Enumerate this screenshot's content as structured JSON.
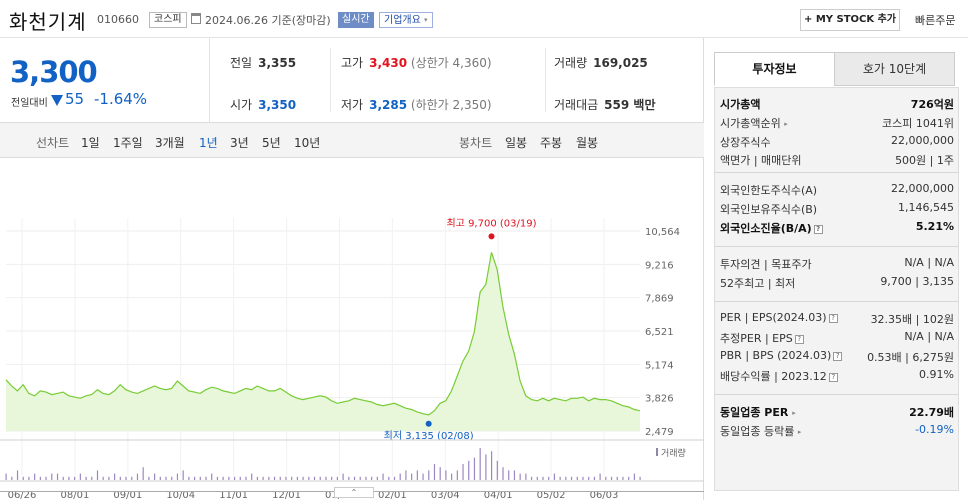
{
  "header": {
    "name": "화천기계",
    "code": "010660",
    "market": "코스피",
    "date_text": "2024.06.26  기준(장마감)",
    "realtime": "실시간",
    "corp_info": "기업개요",
    "corp_info_caret": "▾",
    "mystock": "+ MY STOCK 추가",
    "quick_order": "빠른주문"
  },
  "price": {
    "current": "3,300",
    "change_label": "전일대비",
    "change_amount": "55",
    "change_pct": "-1.64%"
  },
  "summary": {
    "prev_label": "전일",
    "prev": "3,355",
    "high_label": "고가",
    "high": "3,430",
    "upper_limit": "(상한가 4,360)",
    "volume_label": "거래량",
    "volume": "169,025",
    "open_label": "시가",
    "open": "3,350",
    "low_label": "저가",
    "low": "3,285",
    "lower_limit": "(하한가 2,350)",
    "amount_label": "거래대금",
    "amount": "559 백만"
  },
  "periods": {
    "line_label": "선차트",
    "line_items": [
      "1일",
      "1주일",
      "3개월",
      "1년",
      "3년",
      "5년",
      "10년"
    ],
    "active": "1년",
    "candle_label": "봉차트",
    "candle_items": [
      "일봉",
      "주봉",
      "월봉"
    ]
  },
  "chart_data": {
    "type": "area",
    "x_ticks": [
      "06/26",
      "08/01",
      "09/01",
      "10/04",
      "11/01",
      "12/01",
      "01/02",
      "02/01",
      "03/04",
      "04/01",
      "05/02",
      "06/03"
    ],
    "y_ticks": [
      "10,564",
      "9,216",
      "7,869",
      "6,521",
      "5,174",
      "3,826",
      "2,479"
    ],
    "ylim": [
      2479,
      10564
    ],
    "high_label": "최고 9,700 (03/19)",
    "low_label": "최저 3,135 (02/08)",
    "high": 9700,
    "low": 3135,
    "volume_label": "거래량",
    "prices": [
      4550,
      4300,
      4100,
      4350,
      4000,
      3900,
      4100,
      4050,
      3950,
      4000,
      4050,
      3900,
      3850,
      3800,
      3900,
      3950,
      4150,
      4000,
      3950,
      4100,
      4350,
      4150,
      4050,
      4000,
      4100,
      4200,
      4300,
      4200,
      4150,
      4200,
      4500,
      4300,
      4100,
      4050,
      4000,
      4150,
      4250,
      4200,
      4100,
      4050,
      4000,
      4100,
      4200,
      4150,
      4300,
      4200,
      4100,
      4100,
      4200,
      4050,
      3900,
      3800,
      3750,
      3800,
      3850,
      3900,
      3850,
      3700,
      3600,
      3650,
      3700,
      3800,
      3750,
      3700,
      3650,
      3550,
      3500,
      3550,
      3600,
      3500,
      3400,
      3350,
      3250,
      3180,
      3135,
      3300,
      3600,
      3700,
      4100,
      4700,
      5300,
      5700,
      6500,
      8100,
      8400,
      9700,
      9000,
      7500,
      6400,
      5600,
      4500,
      3900,
      3750,
      3700,
      3800,
      3700,
      3800,
      3750,
      3700,
      3800,
      3800,
      3850,
      3700,
      3800,
      3750,
      3750,
      3700,
      3600,
      3500,
      3450,
      3350,
      3300
    ],
    "volumes": [
      2,
      1,
      3,
      1,
      1,
      2,
      1,
      1,
      2,
      2,
      1,
      1,
      1,
      2,
      1,
      1,
      3,
      1,
      1,
      2,
      1,
      1,
      1,
      2,
      4,
      1,
      2,
      1,
      1,
      1,
      2,
      3,
      1,
      1,
      1,
      1,
      2,
      1,
      1,
      1,
      1,
      1,
      1,
      2,
      1,
      1,
      1,
      1,
      1,
      1,
      1,
      1,
      1,
      1,
      1,
      1,
      1,
      1,
      1,
      2,
      1,
      1,
      1,
      1,
      1,
      1,
      2,
      1,
      1,
      2,
      3,
      2,
      3,
      2,
      3,
      5,
      4,
      3,
      2,
      3,
      5,
      6,
      7,
      10,
      8,
      9,
      6,
      4,
      3,
      3,
      2,
      2,
      1,
      1,
      1,
      1,
      2,
      1,
      1,
      1,
      1,
      1,
      1,
      1,
      2,
      1,
      1,
      1,
      1,
      1,
      2,
      1
    ]
  },
  "right": {
    "tab_invest": "투자정보",
    "tab_hoga": "호가 10단계",
    "market_cap_label": "시가총액",
    "market_cap": "726억원",
    "rank_label": "시가총액순위",
    "rank": "코스피 1041위",
    "shares_label": "상장주식수",
    "shares": "22,000,000",
    "par_label": "액면가 | 매매단위",
    "par": "500원 | 1주",
    "foreign_limit_label": "외국인한도주식수(A)",
    "foreign_limit": "22,000,000",
    "foreign_hold_label": "외국인보유주식수(B)",
    "foreign_hold": "1,146,545",
    "foreign_ratio_label": "외국인소진율(B/A)",
    "foreign_ratio": "5.21%",
    "opinion_label": "투자의견 | 목표주가",
    "opinion": "N/A | N/A",
    "week52_label": "52주최고 | 최저",
    "week52": "9,700 | 3,135",
    "per_label": "PER | EPS(2024.03)",
    "per": "32.35배 | 102원",
    "est_per_label": "추정PER | EPS",
    "est_per": "N/A | N/A",
    "pbr_label": "PBR | BPS (2024.03)",
    "pbr": "0.53배 | 6,275원",
    "dividend_label": "배당수익률 | 2023.12",
    "dividend": "0.91%",
    "industry_per_label": "동일업종 PER",
    "industry_per": "22.79배",
    "industry_chg_label": "동일업종 등락률",
    "industry_chg": "-0.19%",
    "q_mark": "?"
  },
  "colors": {
    "blue": "#1261c4",
    "red": "#e0131e",
    "area_line": "#77cc33",
    "area_fill": "#e8f7d9"
  },
  "icons": {
    "down_arrow": "down-triangle",
    "calendar": "calendar-icon",
    "toggle": "chevron-up-icon"
  },
  "chart_toggle_label": "⌃"
}
